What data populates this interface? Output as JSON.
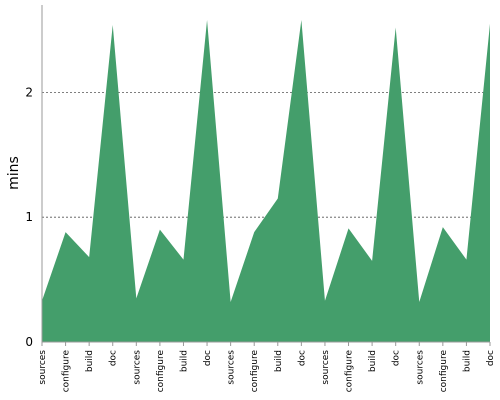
{
  "chart_data": {
    "type": "area",
    "ylabel": "mins",
    "xlabel": "",
    "ylim": [
      0,
      2.7
    ],
    "yticks": [
      0,
      1,
      2
    ],
    "grid": "horizontal-dashed",
    "legend": "none",
    "categories": [
      "sources",
      "configure",
      "build",
      "doc",
      "sources",
      "configure",
      "build",
      "doc",
      "sources",
      "configure",
      "build",
      "doc",
      "sources",
      "configure",
      "build",
      "doc",
      "sources",
      "configure",
      "build",
      "doc"
    ],
    "series": [
      {
        "color": "#449e6b",
        "values": [
          0.33,
          0.88,
          0.68,
          2.54,
          0.35,
          0.9,
          0.66,
          2.58,
          0.32,
          0.88,
          1.15,
          2.58,
          0.33,
          0.91,
          0.65,
          2.52,
          0.32,
          0.92,
          0.66,
          2.55
        ]
      }
    ]
  }
}
